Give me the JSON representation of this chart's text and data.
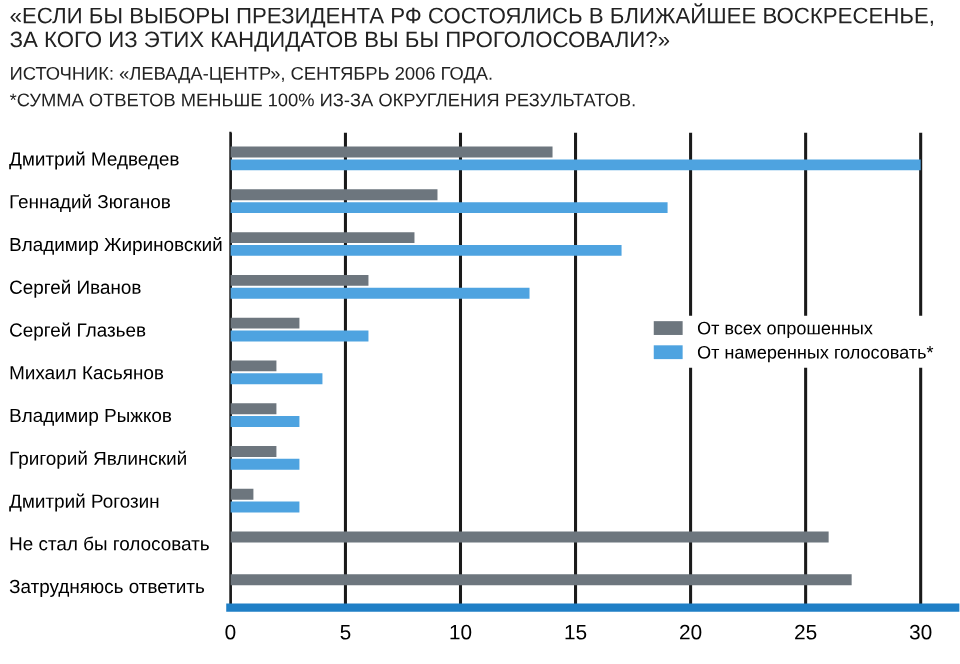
{
  "chart_data": {
    "type": "bar",
    "orientation": "horizontal",
    "title": "«ЕСЛИ БЫ ВЫБОРЫ ПРЕЗИДЕНТА РФ СОСТОЯЛИСЬ В БЛИЖАЙШЕЕ ВОСКРЕСЕНЬЕ, ЗА КОГО ИЗ ЭТИХ КАНДИДАТОВ ВЫ БЫ ПРОГОЛОСОВАЛИ?»",
    "annotations": [
      "ИСТОЧНИК: «ЛЕВАДА-ЦЕНТР», СЕНТЯБРЬ 2006 ГОДА.",
      "*СУММА ОТВЕТОВ МЕНЬШЕ 100% ИЗ-ЗА ОКРУГЛЕНИЯ РЕЗУЛЬТАТОВ."
    ],
    "categories": [
      "Дмитрий Медведев",
      "Геннадий Зюганов",
      "Владимир Жириновский",
      "Сергей Иванов",
      "Сергей Глазьев",
      "Михаил Касьянов",
      "Владимир Рыжков",
      "Григорий Явлинский",
      "Дмитрий Рогозин",
      "Не стал бы голосовать",
      "Затрудняюсь ответить"
    ],
    "series": [
      {
        "name": "От всех опрошенных",
        "color": "#6d767e",
        "values": [
          14,
          9,
          8,
          6,
          3,
          2,
          2,
          2,
          1,
          26,
          27
        ]
      },
      {
        "name": "От намеренных голосовать*",
        "color": "#4ea3e0",
        "values": [
          30,
          19,
          17,
          13,
          6,
          4,
          3,
          3,
          3,
          null,
          null
        ]
      }
    ],
    "xlim": [
      0,
      31.5
    ],
    "xticks": [
      0,
      5,
      10,
      15,
      20,
      25,
      30
    ],
    "grid": "x",
    "legend": "right"
  }
}
